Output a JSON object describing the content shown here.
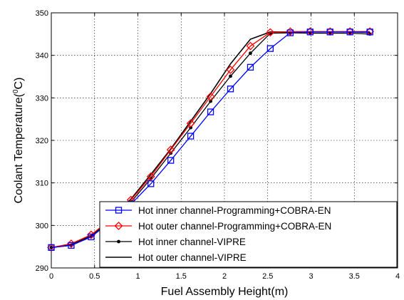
{
  "chart_data": {
    "type": "line",
    "title": "",
    "xlabel": "Fuel Assembly Height(m)",
    "ylabel": "Coolant Temperature(",
    "ylabel_unit_sup": "0",
    "ylabel_unit_tail": "C)",
    "xlim": [
      0,
      4
    ],
    "ylim": [
      290,
      350
    ],
    "xticks": [
      "0",
      "0.5",
      "1",
      "1.5",
      "2",
      "2.5",
      "3",
      "3.5",
      "4"
    ],
    "yticks": [
      "290",
      "300",
      "310",
      "320",
      "330",
      "340",
      "350"
    ],
    "grid": true,
    "legend_position": "bottom-right",
    "series": [
      {
        "name": "Hot inner channel-Programming+COBRA-EN",
        "color": "#0000ff",
        "marker": "square",
        "line": "solid",
        "x": [
          0,
          0.23,
          0.46,
          0.69,
          0.92,
          1.15,
          1.38,
          1.61,
          1.84,
          2.07,
          2.3,
          2.53,
          2.76,
          2.99,
          3.22,
          3.45,
          3.68
        ],
        "y": [
          294.8,
          295.3,
          297.3,
          301.0,
          305.0,
          309.8,
          315.3,
          321.0,
          326.7,
          332.1,
          337.2,
          341.6,
          345.3,
          345.5,
          345.5,
          345.5,
          345.5
        ]
      },
      {
        "name": "Hot outer channel-Programming+COBRA-EN",
        "color": "#ff0000",
        "marker": "diamond",
        "line": "solid",
        "x": [
          0,
          0.23,
          0.46,
          0.69,
          0.92,
          1.15,
          1.38,
          1.61,
          1.84,
          2.07,
          2.3,
          2.53,
          2.76,
          2.99,
          3.22,
          3.45,
          3.68
        ],
        "y": [
          294.8,
          295.7,
          297.8,
          301.5,
          306.0,
          311.5,
          317.8,
          324.0,
          330.3,
          336.6,
          342.2,
          345.4,
          345.6,
          345.6,
          345.6,
          345.6,
          345.6
        ]
      },
      {
        "name": "Hot inner channel-VIPRE",
        "color": "#000000",
        "marker": "dot",
        "line": "solid",
        "x": [
          0,
          0.23,
          0.46,
          0.69,
          0.92,
          1.15,
          1.38,
          1.61,
          1.84,
          2.07,
          2.3,
          2.53,
          2.76,
          2.99,
          3.22,
          3.45,
          3.68
        ],
        "y": [
          294.8,
          295.3,
          297.3,
          301.0,
          305.5,
          311.0,
          317.0,
          323.0,
          329.2,
          335.1,
          340.5,
          345.2,
          345.3,
          345.2,
          345.2,
          345.2,
          345.0
        ]
      },
      {
        "name": "Hot outer channel-VIPRE",
        "color": "#000000",
        "marker": "none",
        "line": "solid",
        "x": [
          0,
          0.23,
          0.46,
          0.69,
          0.92,
          1.15,
          1.38,
          1.61,
          1.84,
          2.07,
          2.3,
          2.53,
          2.76,
          2.99,
          3.22,
          3.45,
          3.68
        ],
        "y": [
          294.8,
          295.5,
          297.6,
          301.4,
          306.2,
          312.0,
          318.0,
          324.5,
          331.0,
          338.0,
          343.8,
          345.5,
          345.5,
          345.5,
          345.5,
          345.5,
          345.4
        ]
      }
    ]
  }
}
